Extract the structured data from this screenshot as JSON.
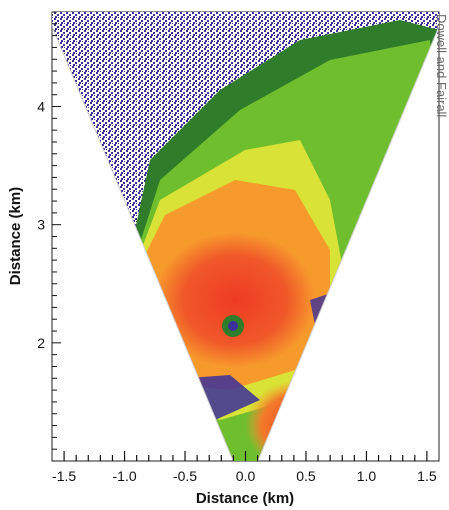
{
  "chart_data": {
    "type": "heatmap",
    "title": "",
    "xlabel": "Distance (km)",
    "ylabel": "Distance (km)",
    "xlim": [
      -1.6,
      1.6
    ],
    "ylim": [
      1.0,
      4.8
    ],
    "x_ticks": [
      -1.5,
      -1.0,
      -0.5,
      0.0,
      0.5,
      1.0,
      1.5
    ],
    "x_tick_labels": [
      "-1.5",
      "-1.0",
      "-0.5",
      "0.0",
      "0.5",
      "1.0",
      "1.5"
    ],
    "y_ticks": [
      2,
      3,
      4
    ],
    "y_tick_labels": [
      "2",
      "3",
      "4"
    ],
    "grid": false,
    "legend": "none",
    "scan_sector": {
      "apex": [
        0.0,
        0.75
      ],
      "half_angle_deg": 23,
      "left_edge_top": [
        -1.65,
        4.8
      ],
      "right_edge_top": [
        1.65,
        4.8
      ]
    },
    "color_levels": [
      {
        "level": "noise",
        "color": "#3b2f9a"
      },
      {
        "level": "low",
        "color": "#2f7d2a"
      },
      {
        "level": "medium-low",
        "color": "#6fbe2e"
      },
      {
        "level": "medium",
        "color": "#d9e236"
      },
      {
        "level": "medium-high",
        "color": "#f79a2c"
      },
      {
        "level": "high",
        "color": "#ee3b24"
      }
    ],
    "features": [
      {
        "type": "eye",
        "x": -0.15,
        "y": 2.1
      },
      {
        "type": "core",
        "x": -0.15,
        "y": 2.3
      },
      {
        "type": "secondary-cell",
        "x": 0.45,
        "y": 1.3
      }
    ]
  },
  "side_text": "Dowell and Fairall"
}
